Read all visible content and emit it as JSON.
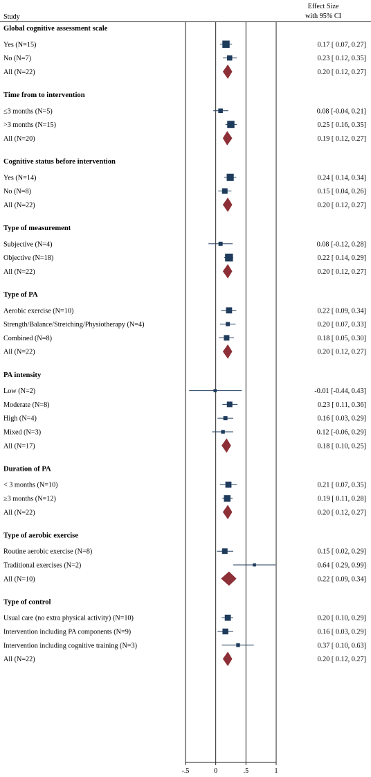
{
  "chart_data": {
    "type": "forest",
    "header": {
      "study": "Study",
      "effect_line1": "Effect Size",
      "effect_line2": "with 95% CI"
    },
    "x_ticks": [
      {
        "value": -0.5,
        "label": "-.5"
      },
      {
        "value": 0,
        "label": "0"
      },
      {
        "value": 0.5,
        "label": ".5"
      },
      {
        "value": 1,
        "label": "1"
      }
    ],
    "xlim": [
      -0.5,
      1
    ],
    "reference_lines": [
      0,
      0.5
    ],
    "groups": [
      {
        "title": "Global cognitive assessment scale",
        "rows": [
          {
            "label": "Yes (N=15)",
            "est": 0.17,
            "lo": 0.07,
            "hi": 0.27,
            "text": "0.17 [ 0.07,  0.27]",
            "kind": "study",
            "w": 15
          },
          {
            "label": "No (N=7)",
            "est": 0.23,
            "lo": 0.12,
            "hi": 0.35,
            "text": "0.23 [ 0.12,  0.35]",
            "kind": "study",
            "w": 7
          },
          {
            "label": "All (N=22)",
            "est": 0.2,
            "lo": 0.12,
            "hi": 0.27,
            "text": "0.20 [ 0.12,  0.27]",
            "kind": "overall"
          }
        ]
      },
      {
        "title": "Time from to intervention",
        "rows": [
          {
            "label": "≤3 months (N=5)",
            "est": 0.08,
            "lo": -0.04,
            "hi": 0.21,
            "text": "0.08 [-0.04,  0.21]",
            "kind": "study",
            "w": 5
          },
          {
            "label": ">3 months (N=15)",
            "est": 0.25,
            "lo": 0.16,
            "hi": 0.35,
            "text": "0.25 [ 0.16,  0.35]",
            "kind": "study",
            "w": 15
          },
          {
            "label": "All (N=20)",
            "est": 0.19,
            "lo": 0.12,
            "hi": 0.27,
            "text": "0.19 [ 0.12,  0.27]",
            "kind": "overall"
          }
        ]
      },
      {
        "title": "Cognitive status before intervention",
        "rows": [
          {
            "label": "Yes (N=14)",
            "est": 0.24,
            "lo": 0.14,
            "hi": 0.34,
            "text": "0.24 [ 0.14,  0.34]",
            "kind": "study",
            "w": 14
          },
          {
            "label": "No (N=8)",
            "est": 0.15,
            "lo": 0.04,
            "hi": 0.26,
            "text": "0.15 [ 0.04,  0.26]",
            "kind": "study",
            "w": 8
          },
          {
            "label": "All (N=22)",
            "est": 0.2,
            "lo": 0.12,
            "hi": 0.27,
            "text": "0.20 [ 0.12,  0.27]",
            "kind": "overall"
          }
        ]
      },
      {
        "title": "Type of measurement",
        "rows": [
          {
            "label": "Subjective (N=4)",
            "est": 0.08,
            "lo": -0.12,
            "hi": 0.28,
            "text": "0.08 [-0.12,  0.28]",
            "kind": "study",
            "w": 4
          },
          {
            "label": "Objective (N=18)",
            "est": 0.22,
            "lo": 0.14,
            "hi": 0.29,
            "text": "0.22 [ 0.14,  0.29]",
            "kind": "study",
            "w": 18
          },
          {
            "label": "All (N=22)",
            "est": 0.2,
            "lo": 0.12,
            "hi": 0.27,
            "text": "0.20 [ 0.12,  0.27]",
            "kind": "overall"
          }
        ]
      },
      {
        "title": "Type of PA",
        "rows": [
          {
            "label": "Aerobic exercise (N=10)",
            "est": 0.22,
            "lo": 0.09,
            "hi": 0.34,
            "text": "0.22 [ 0.09,  0.34]",
            "kind": "study",
            "w": 10
          },
          {
            "label": "Strength/Balance/Stretching/Physiotherapy (N=4)",
            "est": 0.2,
            "lo": 0.07,
            "hi": 0.33,
            "text": "0.20 [ 0.07,  0.33]",
            "kind": "study",
            "w": 4
          },
          {
            "label": "Combined (N=8)",
            "est": 0.18,
            "lo": 0.05,
            "hi": 0.3,
            "text": "0.18 [ 0.05,  0.30]",
            "kind": "study",
            "w": 8
          },
          {
            "label": "All (N=22)",
            "est": 0.2,
            "lo": 0.12,
            "hi": 0.27,
            "text": "0.20 [ 0.12,  0.27]",
            "kind": "overall"
          }
        ]
      },
      {
        "title": "PA intensity",
        "rows": [
          {
            "label": "Low (N=2)",
            "est": -0.01,
            "lo": -0.44,
            "hi": 0.43,
            "text": "-0.01 [-0.44,  0.43]",
            "kind": "study",
            "w": 2
          },
          {
            "label": "Moderate (N=8)",
            "est": 0.23,
            "lo": 0.11,
            "hi": 0.36,
            "text": "0.23 [ 0.11,  0.36]",
            "kind": "study",
            "w": 8
          },
          {
            "label": "High (N=4)",
            "est": 0.16,
            "lo": 0.03,
            "hi": 0.29,
            "text": "0.16 [ 0.03,  0.29]",
            "kind": "study",
            "w": 4
          },
          {
            "label": "Mixed (N=3)",
            "est": 0.12,
            "lo": -0.06,
            "hi": 0.29,
            "text": "0.12 [-0.06,  0.29]",
            "kind": "study",
            "w": 3
          },
          {
            "label": "All (N=17)",
            "est": 0.18,
            "lo": 0.1,
            "hi": 0.25,
            "text": "0.18 [ 0.10,  0.25]",
            "kind": "overall"
          }
        ]
      },
      {
        "title": "Duration of PA",
        "rows": [
          {
            "label": "< 3 months (N=10)",
            "est": 0.21,
            "lo": 0.07,
            "hi": 0.35,
            "text": "0.21 [ 0.07,  0.35]",
            "kind": "study",
            "w": 10
          },
          {
            "label": "≥3 months (N=12)",
            "est": 0.19,
            "lo": 0.11,
            "hi": 0.28,
            "text": "0.19 [ 0.11,  0.28]",
            "kind": "study",
            "w": 12
          },
          {
            "label": "All (N=22)",
            "est": 0.2,
            "lo": 0.12,
            "hi": 0.27,
            "text": "0.20 [ 0.12,  0.27]",
            "kind": "overall"
          }
        ]
      },
      {
        "title": "Type of aerobic exercise",
        "rows": [
          {
            "label": "Routine aerobic exercise (N=8)",
            "est": 0.15,
            "lo": 0.02,
            "hi": 0.29,
            "text": "0.15 [ 0.02,  0.29]",
            "kind": "study",
            "w": 8
          },
          {
            "label": "Traditional exercises (N=2)",
            "est": 0.64,
            "lo": 0.29,
            "hi": 0.99,
            "text": "0.64 [ 0.29,  0.99]",
            "kind": "study",
            "w": 2
          },
          {
            "label": "All (N=10)",
            "est": 0.22,
            "lo": 0.09,
            "hi": 0.34,
            "text": "0.22 [ 0.09,  0.34]",
            "kind": "overall"
          }
        ]
      },
      {
        "title": "Type of control",
        "rows": [
          {
            "label": "Usual care (no extra physical activity) (N=10)",
            "est": 0.2,
            "lo": 0.1,
            "hi": 0.29,
            "text": "0.20 [ 0.10,  0.29]",
            "kind": "study",
            "w": 10
          },
          {
            "label": "Intervention including PA components (N=9)",
            "est": 0.16,
            "lo": 0.03,
            "hi": 0.29,
            "text": "0.16 [ 0.03,  0.29]",
            "kind": "study",
            "w": 9
          },
          {
            "label": "Intervention including cognitive training (N=3)",
            "est": 0.37,
            "lo": 0.1,
            "hi": 0.63,
            "text": "0.37 [ 0.10,  0.63]",
            "kind": "study",
            "w": 3
          },
          {
            "label": "All (N=22)",
            "est": 0.2,
            "lo": 0.12,
            "hi": 0.27,
            "text": "0.20 [ 0.12,  0.27]",
            "kind": "overall"
          }
        ]
      }
    ],
    "colors": {
      "square": "#1f3b5c",
      "ci_line": "#1f3b5c",
      "diamond": "#8c2f36",
      "frame": "#222222"
    }
  }
}
